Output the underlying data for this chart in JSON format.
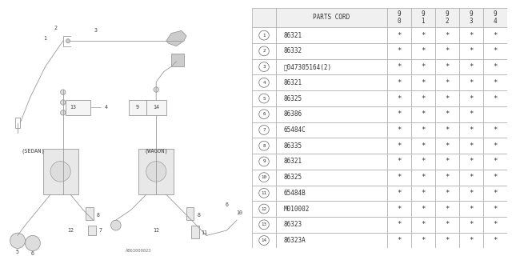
{
  "bg_color": "#ffffff",
  "grid_color": "#aaaaaa",
  "text_color": "#444444",
  "diagram_ref": "AB63000023",
  "header": [
    "",
    "PARTS CORD",
    "9\n0",
    "9\n1",
    "9\n2",
    "9\n3",
    "9\n4"
  ],
  "rows": [
    [
      "1",
      "86321",
      "*",
      "*",
      "*",
      "*",
      "*"
    ],
    [
      "2",
      "86332",
      "*",
      "*",
      "*",
      "*",
      "*"
    ],
    [
      "3",
      "Ⓢ047305164(2)",
      "*",
      "*",
      "*",
      "*",
      "*"
    ],
    [
      "4",
      "86321",
      "*",
      "*",
      "*",
      "*",
      "*"
    ],
    [
      "5",
      "86325",
      "*",
      "*",
      "*",
      "*",
      "*"
    ],
    [
      "6",
      "86386",
      "*",
      "*",
      "*",
      "*",
      ""
    ],
    [
      "7",
      "65484C",
      "*",
      "*",
      "*",
      "*",
      "*"
    ],
    [
      "8",
      "86335",
      "*",
      "*",
      "*",
      "*",
      "*"
    ],
    [
      "9",
      "86321",
      "*",
      "*",
      "*",
      "*",
      "*"
    ],
    [
      "10",
      "86325",
      "*",
      "*",
      "*",
      "*",
      "*"
    ],
    [
      "11",
      "65484B",
      "*",
      "*",
      "*",
      "*",
      "*"
    ],
    [
      "12",
      "M010002",
      "*",
      "*",
      "*",
      "*",
      "*"
    ],
    [
      "13",
      "86323",
      "*",
      "*",
      "*",
      "*",
      "*"
    ],
    [
      "14",
      "86323A",
      "*",
      "*",
      "*",
      "*",
      "*"
    ]
  ],
  "sedan_label": "(SEDAN)",
  "wagon_label": "(WAGON)",
  "lc": "#999999",
  "lw": 0.6
}
